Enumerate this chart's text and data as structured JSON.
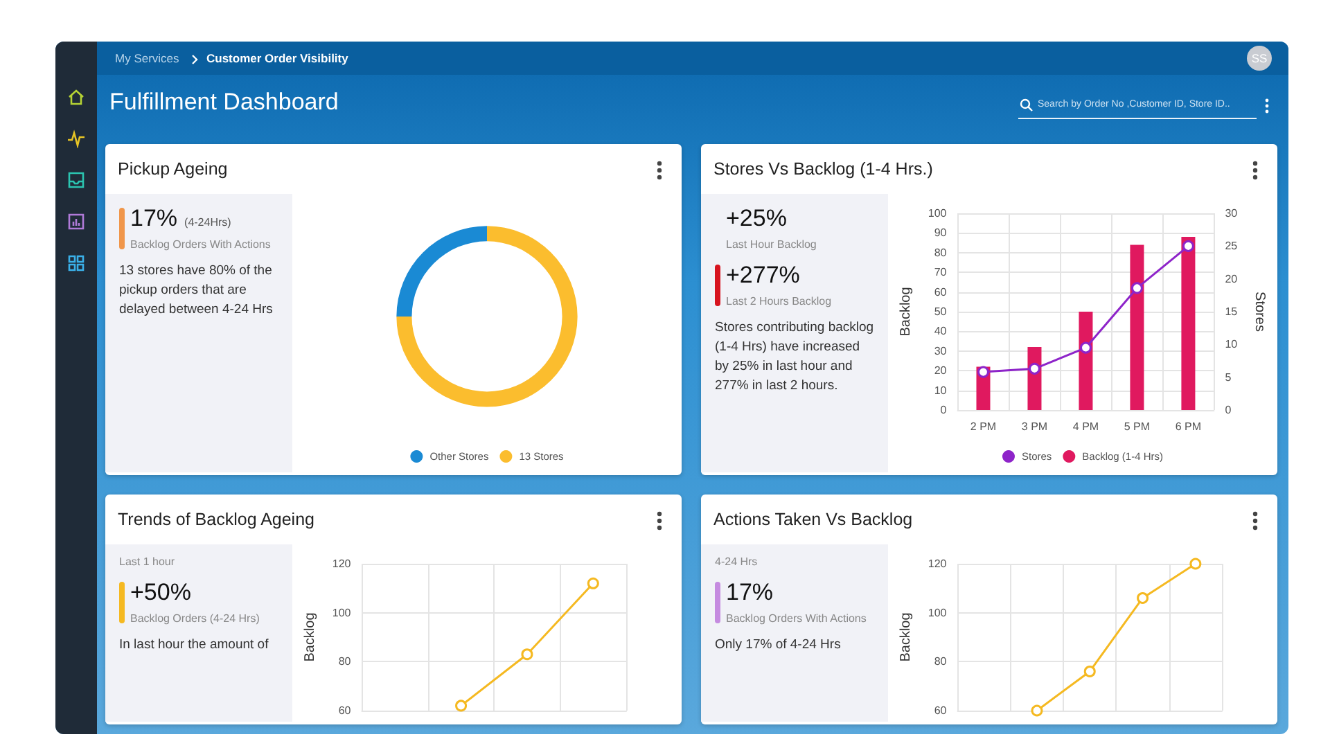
{
  "chart_data": [
    {
      "type": "other",
      "title": "Fulfillment Dashboard",
      "annotations": [
        "My Services",
        "Customer Order Visibility",
        "Search by Order No ,Customer ID, Store ID..",
        "SS"
      ]
    },
    {
      "type": "other",
      "title": "Pickup Ageing",
      "annotations": [
        "17%",
        "(4-24Hrs)",
        "Backlog Orders With Actions",
        "13 stores have 80% of the pickup orders that are delayed between 4-24 Hrs"
      ]
    },
    {
      "type": "donut",
      "categories": [
        "Other Stores",
        "13 Stores"
      ],
      "values": [
        25,
        75
      ],
      "colors": [
        "#1a8ad4",
        "#fbbd2e"
      ],
      "legend": "bottom"
    },
    {
      "type": "other",
      "title": "Stores Vs Backlog (1-4 Hrs.)",
      "annotations": [
        "+25%",
        "Last Hour Backlog",
        "+277%",
        "Last 2 Hours Backlog",
        "Stores contributing backlog (1-4 Hrs) have increased by 25% in last hour and 277% in last 2 hours."
      ]
    },
    {
      "type": "bar",
      "categories": [
        "2 PM",
        "3 PM",
        "4 PM",
        "5 PM",
        "6 PM"
      ],
      "ylabel": "Backlog",
      "y2label": "Stores",
      "ylim": [
        0,
        100
      ],
      "yticks": [
        0,
        10,
        20,
        30,
        40,
        50,
        60,
        70,
        80,
        90,
        100
      ],
      "y2lim": [
        0,
        30
      ],
      "y2ticks": [
        0,
        5,
        10,
        15,
        20,
        25,
        30
      ],
      "grid": true,
      "legend": "bottom",
      "marker": "circle",
      "series": [
        {
          "name": "Stores",
          "type": "line",
          "axis": "y2",
          "color": "#8e24c9",
          "values": [
            5.8,
            6.3,
            9.5,
            18.6,
            25
          ]
        },
        {
          "name": "Backlog (1-4 Hrs)",
          "type": "bar",
          "color": "#e0195f",
          "values": [
            22,
            32,
            50,
            84,
            88
          ]
        }
      ]
    },
    {
      "type": "other",
      "title": "Trends of Backlog Ageing",
      "annotations": [
        "Last  1 hour",
        "+50%",
        "Backlog Orders (4-24 Hrs)",
        "In last hour the amount of"
      ]
    },
    {
      "type": "line",
      "categories": [
        null,
        null,
        null,
        null
      ],
      "ylabel": "Backlog",
      "ylim": [
        60,
        120
      ],
      "yticks": [
        60,
        80,
        100,
        120
      ],
      "grid": true,
      "marker": "circle",
      "color": "#f5b921",
      "values": [
        null,
        62,
        83,
        112
      ]
    },
    {
      "type": "other",
      "title": "Actions Taken Vs Backlog",
      "annotations": [
        "4-24  Hrs",
        "17%",
        "Backlog Orders With Actions",
        "Only 17% of 4-24 Hrs"
      ]
    },
    {
      "type": "line",
      "categories": [
        null,
        null,
        null,
        null,
        null
      ],
      "ylabel": "Backlog",
      "ylim": [
        60,
        120
      ],
      "yticks": [
        60,
        80,
        100,
        120
      ],
      "grid": true,
      "marker": "circle",
      "color": "#f5b921",
      "values": [
        null,
        60,
        76,
        106,
        120
      ]
    }
  ]
}
